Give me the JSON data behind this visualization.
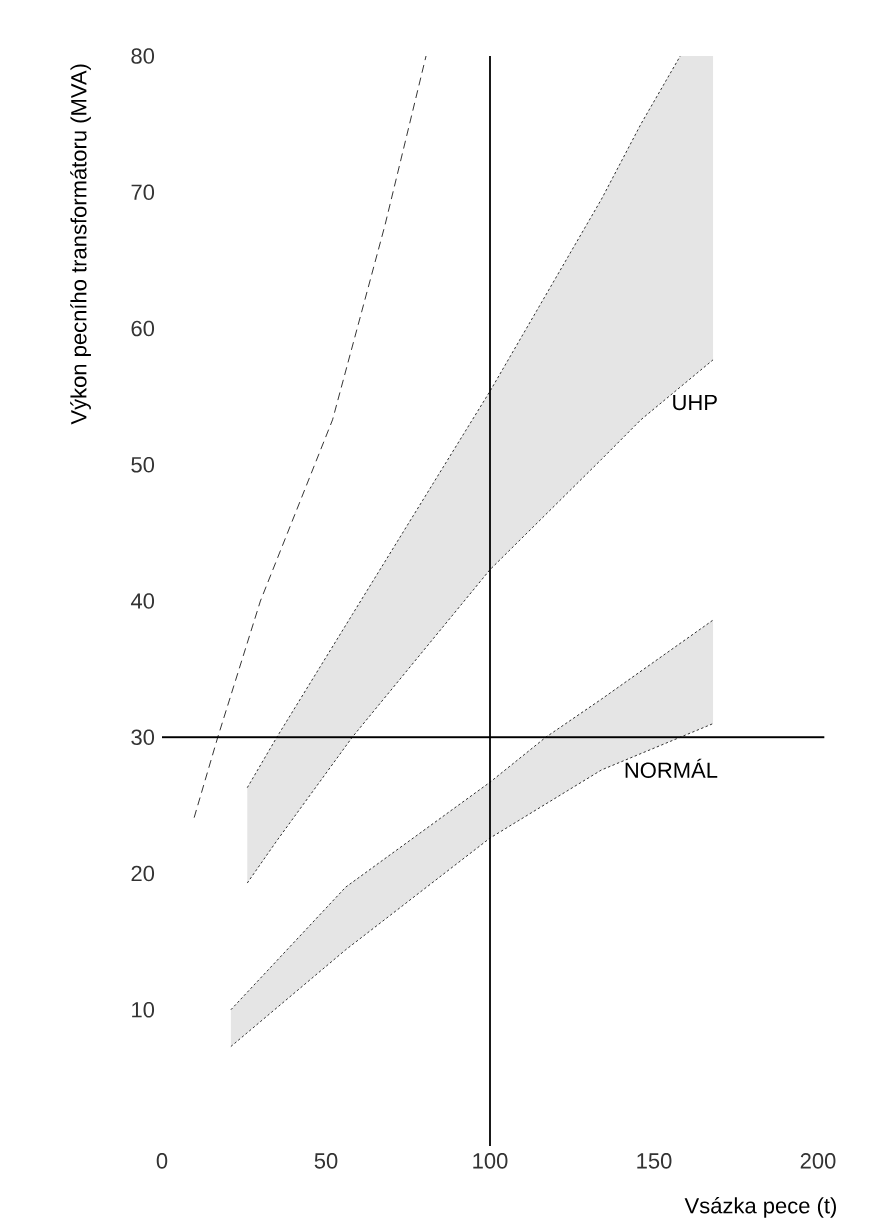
{
  "chart_data": {
    "type": "line",
    "xlabel": "Vsázka pece (t)",
    "ylabel": "Výkon pecního transformátoru (MVA)",
    "xlim": [
      0,
      202
    ],
    "ylim": [
      0,
      80
    ],
    "xticks": [
      0,
      50,
      100,
      150,
      200
    ],
    "yticks": [
      10,
      20,
      30,
      40,
      50,
      60,
      70,
      80
    ],
    "grid": false,
    "marker": "none",
    "ref_lines": [
      {
        "axis": "y",
        "value": 30,
        "color": "#000000"
      },
      {
        "axis": "x",
        "value": 100,
        "color": "#000000"
      }
    ],
    "series": [
      {
        "color": "#000000",
        "line_style": "dashed",
        "x": [
          9.8,
          17,
          30,
          52,
          68,
          80.5
        ],
        "values": [
          24.1,
          30,
          40,
          53.3,
          67.6,
          80
        ]
      },
      {
        "name": "UHP",
        "color": "#000000",
        "line_style": "dotted",
        "x": [
          26,
          35,
          58,
          100,
          134,
          146,
          158,
          168
        ],
        "values": [
          19.3,
          22.4,
          30,
          42.3,
          50.4,
          53.3,
          55.7,
          57.7
        ],
        "upper": [
          26.3,
          30,
          39,
          55.4,
          69.5,
          75,
          80,
          80
        ],
        "lower": [
          19.3,
          22.4,
          30,
          42.3,
          50.4,
          53.3,
          55.7,
          57.7
        ]
      },
      {
        "color": "#000000",
        "line_style": "dotted",
        "x": [
          26,
          35,
          58,
          100,
          134,
          146,
          158
        ],
        "values": [
          26.3,
          30,
          39,
          55.4,
          69.5,
          75,
          80
        ]
      },
      {
        "name": "NORMÁL",
        "color": "#000000",
        "line_style": "dotted",
        "x": [
          21,
          56,
          100,
          117,
          134,
          168
        ],
        "values": [
          7.3,
          14.4,
          22.6,
          25.1,
          27.6,
          31
        ],
        "upper": [
          10,
          19,
          26.7,
          30,
          32.8,
          38.6
        ],
        "lower": [
          7.3,
          14.4,
          22.6,
          25.1,
          27.6,
          31
        ]
      },
      {
        "color": "#000000",
        "line_style": "dotted",
        "x": [
          21,
          56,
          100,
          117,
          134,
          168
        ],
        "values": [
          10,
          19,
          26.7,
          30,
          32.8,
          38.6
        ]
      }
    ]
  }
}
